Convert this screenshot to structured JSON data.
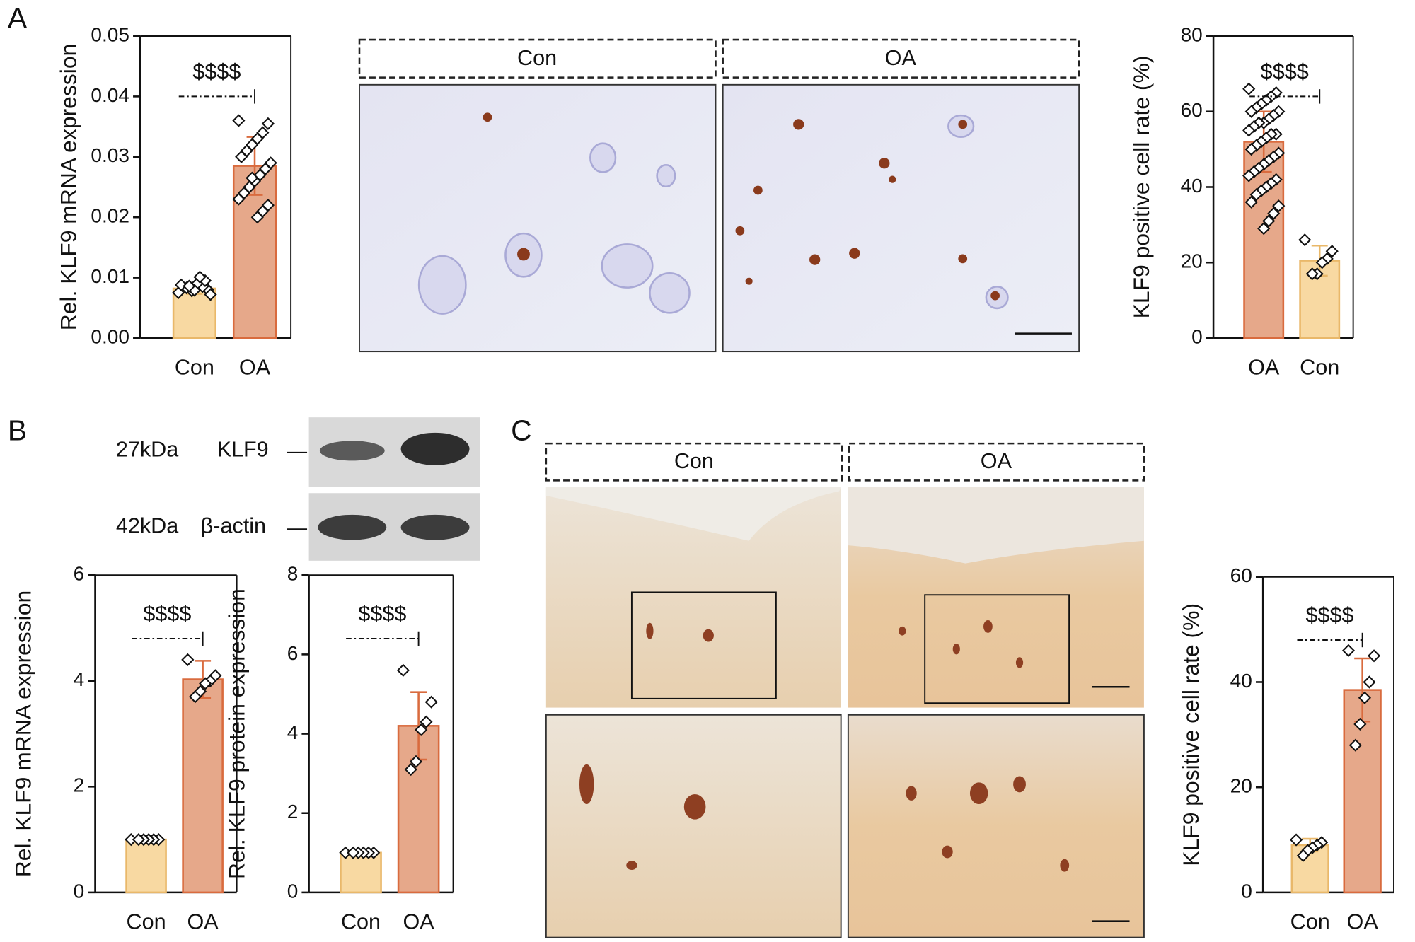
{
  "panels": [
    "A",
    "B",
    "C"
  ],
  "images_a": [
    "Con",
    "OA"
  ],
  "images_c": [
    "Con",
    "OA"
  ],
  "blot": [
    {
      "size": "27kDa",
      "protein": "KLF9"
    },
    {
      "size": "42kDa",
      "protein": "β-actin"
    }
  ],
  "chart_data": [
    {
      "type": "bar",
      "ylabel": "Rel. KLF9 mRNA expression",
      "categories": [
        "Con",
        "OA"
      ],
      "values": [
        0.0082,
        0.0285
      ],
      "errors": [
        0.0009,
        0.0048
      ],
      "points": [
        [
          0.0075,
          0.008,
          0.0085,
          0.009,
          0.0078,
          0.0083,
          0.0088,
          0.0072,
          0.0095,
          0.0101,
          0.0079,
          0.0086
        ],
        [
          0.036,
          0.0355,
          0.034,
          0.033,
          0.032,
          0.031,
          0.03,
          0.029,
          0.028,
          0.027,
          0.026,
          0.025,
          0.024,
          0.023,
          0.022,
          0.021,
          0.02,
          0.0265
        ]
      ],
      "colors": [
        "#f8d9a2",
        "#e6a88a"
      ],
      "edge_colors": [
        "#e9b86a",
        "#d96b3e"
      ],
      "ylim": [
        0,
        0.05
      ],
      "yticks": [
        {
          "value": 0,
          "label": "0.00"
        },
        0.01,
        0.02,
        0.03,
        0.04,
        0.05
      ],
      "annotation": "$$$$"
    },
    {
      "type": "bar",
      "ylabel": "KLF9 positive cell rate (%)",
      "categories": [
        "OA",
        "Con"
      ],
      "values": [
        52,
        20.5
      ],
      "errors": [
        8,
        4
      ],
      "points": [
        [
          66,
          65,
          64,
          63,
          62,
          61,
          60,
          60,
          59,
          58,
          57,
          57,
          56,
          55,
          54,
          54,
          53,
          52,
          51,
          50,
          49,
          48,
          47,
          46,
          45,
          44,
          43,
          42,
          41,
          40,
          39,
          38,
          36,
          35,
          33,
          31,
          29
        ],
        [
          26,
          23,
          21,
          20,
          17,
          17
        ]
      ],
      "colors": [
        "#e6a88a",
        "#f8d9a2"
      ],
      "edge_colors": [
        "#d96b3e",
        "#e9b86a"
      ],
      "ylim": [
        0,
        80
      ],
      "yticks": [
        0,
        20,
        40,
        60,
        80
      ],
      "annotation": "$$$$"
    },
    {
      "type": "bar",
      "ylabel": "Rel. KLF9 mRNA expression",
      "categories": [
        "Con",
        "OA"
      ],
      "values": [
        1,
        4.03
      ],
      "errors": [
        0.02,
        0.35
      ],
      "points": [
        [
          1,
          1,
          1,
          1,
          1,
          1
        ],
        [
          4.4,
          4.1,
          4.0,
          3.95,
          3.8,
          3.7
        ]
      ],
      "colors": [
        "#f8d9a2",
        "#e6a88a"
      ],
      "edge_colors": [
        "#e9b86a",
        "#d96b3e"
      ],
      "ylim": [
        0,
        6
      ],
      "yticks": [
        0,
        2,
        4,
        6
      ],
      "annotation": "$$$$"
    },
    {
      "type": "bar",
      "ylabel": "Rel. KLF9 protein expression",
      "categories": [
        "Con",
        "OA"
      ],
      "values": [
        1,
        4.2
      ],
      "errors": [
        0.02,
        0.85
      ],
      "points": [
        [
          1,
          1,
          1,
          1,
          1,
          1
        ],
        [
          5.6,
          4.8,
          4.3,
          4.1,
          3.3,
          3.1
        ]
      ],
      "colors": [
        "#f8d9a2",
        "#e6a88a"
      ],
      "edge_colors": [
        "#e9b86a",
        "#d96b3e"
      ],
      "ylim": [
        0,
        8
      ],
      "yticks": [
        0,
        2,
        4,
        6,
        8
      ],
      "annotation": "$$$$"
    },
    {
      "type": "bar",
      "ylabel": "KLF9 positive cell rate (%)",
      "categories": [
        "Con",
        "OA"
      ],
      "values": [
        9,
        38.5
      ],
      "errors": [
        1.2,
        6
      ],
      "points": [
        [
          10,
          9.5,
          9,
          8.5,
          8,
          7
        ],
        [
          46,
          45,
          40,
          37,
          32,
          28
        ]
      ],
      "colors": [
        "#f8d9a2",
        "#e6a88a"
      ],
      "edge_colors": [
        "#e9b86a",
        "#d96b3e"
      ],
      "ylim": [
        0,
        60
      ],
      "yticks": [
        0,
        20,
        40,
        60
      ],
      "annotation": "$$$$"
    }
  ]
}
